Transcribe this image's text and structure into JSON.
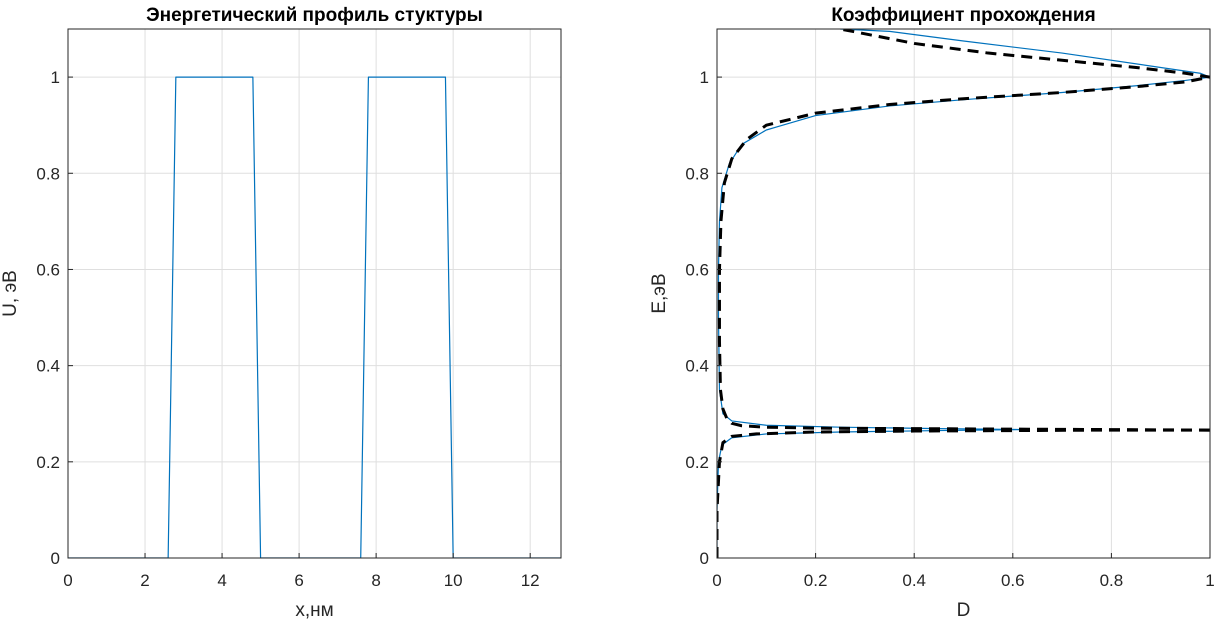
{
  "chart_data": [
    {
      "type": "line",
      "title": "Энергетический профиль стуктуры",
      "xlabel": "x,нм",
      "ylabel": "U, эВ",
      "xlim": [
        0,
        12.8
      ],
      "ylim": [
        0,
        1.1
      ],
      "xticks": [
        0,
        2,
        4,
        6,
        8,
        10,
        12
      ],
      "yticks": [
        0,
        0.2,
        0.4,
        0.6,
        0.8,
        1
      ],
      "grid": true,
      "colors": {
        "series": "#0072BD"
      },
      "series": [
        {
          "style": "solid",
          "x": [
            0,
            2.6,
            2.8,
            4.8,
            5.0,
            7.6,
            7.8,
            9.8,
            10.0,
            12.8
          ],
          "y": [
            0,
            0,
            1,
            1,
            0,
            0,
            1,
            1,
            0,
            0
          ]
        }
      ]
    },
    {
      "type": "line",
      "title": "Коэффициент прохождения",
      "xlabel": "D",
      "ylabel": "E,эВ",
      "xlim": [
        0,
        1
      ],
      "ylim": [
        0,
        1.1
      ],
      "xticks": [
        0,
        0.2,
        0.4,
        0.6,
        0.8,
        1
      ],
      "yticks": [
        0,
        0.2,
        0.4,
        0.6,
        0.8,
        1
      ],
      "grid": true,
      "colors": {
        "solid": "#0072BD",
        "dashed": "#000000"
      },
      "series": [
        {
          "style": "solid",
          "x": [
            0.0,
            0.0,
            0.003,
            0.01,
            0.03,
            0.1,
            0.25,
            0.45,
            0.62,
            0.45,
            0.25,
            0.1,
            0.03,
            0.012,
            0.005,
            0.003,
            0.003,
            0.005,
            0.01,
            0.025,
            0.05,
            0.1,
            0.2,
            0.35,
            0.5,
            0.7,
            0.85,
            0.95,
            1.0,
            0.98,
            0.9,
            0.7,
            0.5,
            0.35,
            0.25
          ],
          "y": [
            0.0,
            0.1,
            0.2,
            0.235,
            0.25,
            0.258,
            0.262,
            0.265,
            0.267,
            0.269,
            0.272,
            0.276,
            0.285,
            0.3,
            0.35,
            0.5,
            0.6,
            0.7,
            0.77,
            0.82,
            0.86,
            0.89,
            0.92,
            0.94,
            0.953,
            0.968,
            0.982,
            0.993,
            1.0,
            1.008,
            1.02,
            1.05,
            1.075,
            1.095,
            1.1
          ]
        },
        {
          "style": "dashed",
          "x": [
            0.0,
            0.0,
            0.005,
            0.012,
            0.03,
            0.08,
            0.2,
            0.4,
            0.6,
            0.8,
            1.0
          ],
          "y": [
            0.0,
            0.1,
            0.2,
            0.24,
            0.253,
            0.258,
            0.262,
            0.264,
            0.265,
            0.266,
            0.266
          ]
        },
        {
          "style": "dashed",
          "x": [
            1.0,
            0.8,
            0.6,
            0.4,
            0.2,
            0.1,
            0.05,
            0.03,
            0.02,
            0.012,
            0.007,
            0.005,
            0.005,
            0.008,
            0.015,
            0.03,
            0.06,
            0.1,
            0.2,
            0.35,
            0.5,
            0.7,
            0.85,
            0.95,
            1.0,
            0.95,
            0.85,
            0.7,
            0.55,
            0.4,
            0.3,
            0.25
          ],
          "y": [
            0.266,
            0.267,
            0.268,
            0.269,
            0.27,
            0.272,
            0.275,
            0.28,
            0.29,
            0.31,
            0.35,
            0.45,
            0.6,
            0.7,
            0.78,
            0.83,
            0.87,
            0.9,
            0.925,
            0.943,
            0.955,
            0.968,
            0.98,
            0.99,
            1.0,
            1.008,
            1.02,
            1.035,
            1.05,
            1.07,
            1.09,
            1.1
          ]
        }
      ]
    }
  ]
}
